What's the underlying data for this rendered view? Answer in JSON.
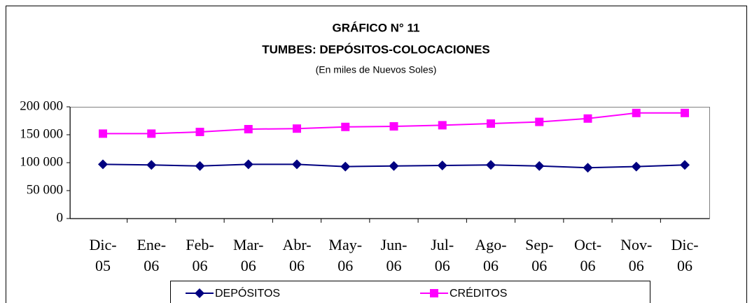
{
  "chart_data": {
    "type": "line",
    "title": "GRÁFICO N° 11",
    "subtitle": "TUMBES: DEPÓSITOS-COLOCACIONES",
    "note": "(En miles de Nuevos Soles)",
    "categories": [
      "Dic-\n05",
      "Ene-\n06",
      "Feb-\n06",
      "Mar-\n06",
      "Abr-\n06",
      "May-\n06",
      "Jun-\n06",
      "Jul-\n06",
      "Ago-\n06",
      "Sep-\n06",
      "Oct-\n06",
      "Nov-\n06",
      "Dic-\n06"
    ],
    "series": [
      {
        "name": "DEPÓSITOS",
        "color": "#000080",
        "marker": "diamond",
        "values": [
          97000,
          96000,
          94000,
          97000,
          97000,
          93000,
          94000,
          95000,
          96000,
          94000,
          91000,
          93000,
          96000
        ]
      },
      {
        "name": "CRÉDITOS",
        "color": "#ff00ff",
        "marker": "square",
        "values": [
          152000,
          152000,
          155000,
          160000,
          161000,
          164000,
          165000,
          167000,
          170000,
          173000,
          179000,
          189000,
          189000
        ]
      }
    ],
    "ylim": [
      0,
      200000
    ],
    "yticks": [
      0,
      {
        "value": 50000,
        "label": "50 000"
      },
      {
        "value": 100000,
        "label": "100 000"
      },
      {
        "value": 150000,
        "label": "150 000"
      },
      {
        "value": 200000,
        "label": "200 000"
      }
    ],
    "grid": false,
    "legend": "bottom"
  }
}
